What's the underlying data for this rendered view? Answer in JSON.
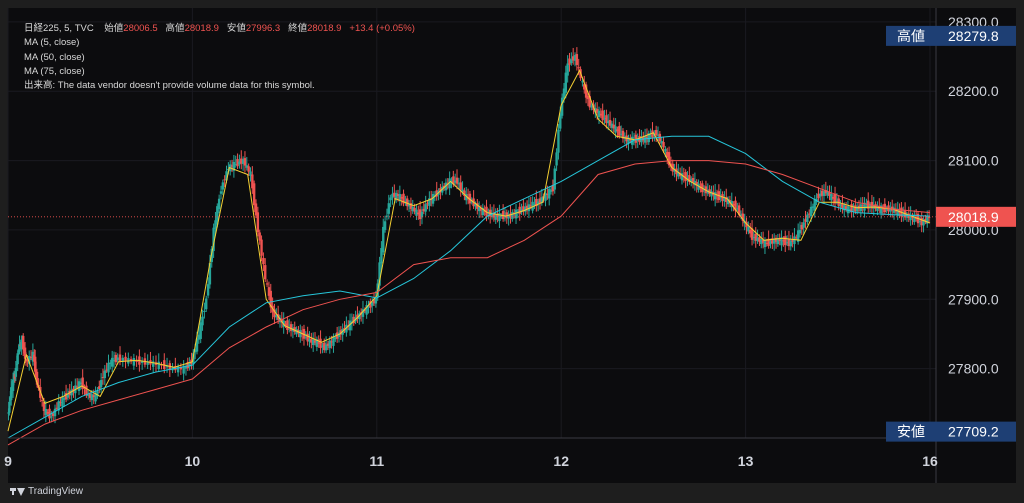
{
  "legend": {
    "symbol": "日経225, 5, TVC",
    "open_label": "始値",
    "open_value": "28006.5",
    "high_label": "高値",
    "high_value": "28018.9",
    "low_label": "安値",
    "low_value": "27996.3",
    "close_label": "終値",
    "close_value": "28018.9",
    "change": "+13.4 (+0.05%)",
    "ma_lines": [
      "MA (5, close)",
      "MA (50, close)",
      "MA (75, close)"
    ],
    "volume_note": "出来高: The data vendor doesn't provide volume data for this symbol."
  },
  "badges": {
    "high_label": "高値",
    "high_value": "28279.8",
    "low_label": "安値",
    "low_value": "27709.2",
    "last_value": "28018.9"
  },
  "brand": {
    "name": "TradingView"
  },
  "colors": {
    "up": "#26a69a",
    "down": "#ef5350",
    "ma5": "#f5d033",
    "ma50": "#26c6da",
    "ma75": "#ef5350",
    "badge_bg": "#1e3f74",
    "last_badge_bg": "#ef5350",
    "grid": "#1a1a20",
    "axis_text": "#d1d4dc"
  },
  "chart_data": {
    "type": "candlestick",
    "title": "日経225, 5, TVC",
    "ylim": [
      27700,
      28320
    ],
    "y_ticks": [
      27800,
      27900,
      28000,
      28100,
      28200,
      28300
    ],
    "y_tick_labels": [
      "27800.0",
      "27900.0",
      "28000.0",
      "28100.0",
      "28200.0",
      "28300.0"
    ],
    "x_ticks": [
      "9",
      "10",
      "11",
      "12",
      "13",
      "16"
    ],
    "x_range": [
      0,
      5
    ],
    "grid": true,
    "ohlc_points": [
      [
        0.0,
        27730
      ],
      [
        0.02,
        27770
      ],
      [
        0.04,
        27790
      ],
      [
        0.06,
        27830
      ],
      [
        0.08,
        27840
      ],
      [
        0.1,
        27810
      ],
      [
        0.14,
        27820
      ],
      [
        0.16,
        27780
      ],
      [
        0.2,
        27740
      ],
      [
        0.24,
        27730
      ],
      [
        0.28,
        27750
      ],
      [
        0.32,
        27760
      ],
      [
        0.36,
        27770
      ],
      [
        0.4,
        27780
      ],
      [
        0.44,
        27760
      ],
      [
        0.48,
        27760
      ],
      [
        0.52,
        27790
      ],
      [
        0.56,
        27810
      ],
      [
        0.6,
        27815
      ],
      [
        0.66,
        27812
      ],
      [
        0.72,
        27810
      ],
      [
        0.78,
        27808
      ],
      [
        0.84,
        27805
      ],
      [
        0.9,
        27800
      ],
      [
        0.96,
        27800
      ],
      [
        1.0,
        27810
      ],
      [
        1.04,
        27850
      ],
      [
        1.08,
        27900
      ],
      [
        1.12,
        28000
      ],
      [
        1.16,
        28060
      ],
      [
        1.2,
        28090
      ],
      [
        1.24,
        28095
      ],
      [
        1.28,
        28100
      ],
      [
        1.32,
        28080
      ],
      [
        1.36,
        28000
      ],
      [
        1.4,
        27930
      ],
      [
        1.44,
        27880
      ],
      [
        1.48,
        27870
      ],
      [
        1.52,
        27860
      ],
      [
        1.56,
        27855
      ],
      [
        1.6,
        27850
      ],
      [
        1.64,
        27840
      ],
      [
        1.68,
        27838
      ],
      [
        1.72,
        27830
      ],
      [
        1.76,
        27840
      ],
      [
        1.8,
        27850
      ],
      [
        1.84,
        27860
      ],
      [
        1.88,
        27870
      ],
      [
        1.92,
        27880
      ],
      [
        1.96,
        27890
      ],
      [
        2.0,
        27900
      ],
      [
        2.04,
        28000
      ],
      [
        2.08,
        28050
      ],
      [
        2.12,
        28050
      ],
      [
        2.16,
        28040
      ],
      [
        2.2,
        28030
      ],
      [
        2.24,
        28020
      ],
      [
        2.28,
        28040
      ],
      [
        2.32,
        28050
      ],
      [
        2.36,
        28060
      ],
      [
        2.4,
        28070
      ],
      [
        2.44,
        28070
      ],
      [
        2.48,
        28050
      ],
      [
        2.52,
        28040
      ],
      [
        2.56,
        28030
      ],
      [
        2.6,
        28025
      ],
      [
        2.64,
        28020
      ],
      [
        2.68,
        28020
      ],
      [
        2.72,
        28020
      ],
      [
        2.76,
        28025
      ],
      [
        2.8,
        28030
      ],
      [
        2.84,
        28035
      ],
      [
        2.88,
        28040
      ],
      [
        2.92,
        28050
      ],
      [
        2.96,
        28060
      ],
      [
        3.0,
        28170
      ],
      [
        3.04,
        28240
      ],
      [
        3.08,
        28250
      ],
      [
        3.12,
        28210
      ],
      [
        3.16,
        28180
      ],
      [
        3.2,
        28170
      ],
      [
        3.24,
        28160
      ],
      [
        3.28,
        28150
      ],
      [
        3.32,
        28140
      ],
      [
        3.36,
        28130
      ],
      [
        3.4,
        28130
      ],
      [
        3.44,
        28130
      ],
      [
        3.48,
        28135
      ],
      [
        3.52,
        28140
      ],
      [
        3.56,
        28120
      ],
      [
        3.6,
        28090
      ],
      [
        3.64,
        28080
      ],
      [
        3.68,
        28075
      ],
      [
        3.72,
        28070
      ],
      [
        3.76,
        28060
      ],
      [
        3.8,
        28055
      ],
      [
        3.84,
        28050
      ],
      [
        3.88,
        28045
      ],
      [
        3.92,
        28040
      ],
      [
        3.96,
        28030
      ],
      [
        4.0,
        28010
      ],
      [
        4.04,
        27990
      ],
      [
        4.08,
        27985
      ],
      [
        4.12,
        27980
      ],
      [
        4.16,
        27985
      ],
      [
        4.2,
        27985
      ],
      [
        4.24,
        27980
      ],
      [
        4.28,
        27990
      ],
      [
        4.32,
        28010
      ],
      [
        4.36,
        28030
      ],
      [
        4.4,
        28050
      ],
      [
        4.44,
        28055
      ],
      [
        4.48,
        28045
      ],
      [
        4.52,
        28035
      ],
      [
        4.56,
        28030
      ],
      [
        4.6,
        28030
      ],
      [
        4.64,
        28035
      ],
      [
        4.68,
        28035
      ],
      [
        4.72,
        28032
      ],
      [
        4.76,
        28030
      ],
      [
        4.8,
        28030
      ],
      [
        4.84,
        28025
      ],
      [
        4.88,
        28020
      ],
      [
        4.92,
        28018
      ],
      [
        4.96,
        28010
      ],
      [
        5.0,
        28019
      ]
    ],
    "series": [
      {
        "name": "MA (5, close)",
        "x": [
          0.0,
          0.1,
          0.2,
          0.3,
          0.4,
          0.5,
          0.6,
          0.7,
          0.8,
          0.9,
          1.0,
          1.1,
          1.2,
          1.3,
          1.4,
          1.5,
          1.6,
          1.7,
          1.8,
          1.9,
          2.0,
          2.1,
          2.2,
          2.3,
          2.4,
          2.5,
          2.6,
          2.7,
          2.8,
          2.9,
          3.0,
          3.1,
          3.2,
          3.3,
          3.4,
          3.5,
          3.6,
          3.7,
          3.8,
          3.9,
          4.0,
          4.1,
          4.2,
          4.3,
          4.4,
          4.5,
          4.6,
          4.7,
          4.8,
          4.9,
          5.0
        ],
        "values": [
          27710,
          27820,
          27750,
          27760,
          27775,
          27760,
          27810,
          27812,
          27808,
          27802,
          27810,
          27960,
          28090,
          28080,
          27900,
          27862,
          27850,
          27838,
          27850,
          27875,
          27905,
          28045,
          28035,
          28045,
          28070,
          28045,
          28025,
          28020,
          28028,
          28040,
          28180,
          28230,
          28160,
          28135,
          28130,
          28140,
          28090,
          28070,
          28055,
          28045,
          28010,
          27985,
          27988,
          27985,
          28040,
          28040,
          28032,
          28033,
          28030,
          28020,
          28010
        ]
      },
      {
        "name": "MA (50, close)",
        "x": [
          0.0,
          0.2,
          0.4,
          0.6,
          0.8,
          1.0,
          1.2,
          1.4,
          1.6,
          1.8,
          2.0,
          2.2,
          2.4,
          2.6,
          2.8,
          3.0,
          3.2,
          3.4,
          3.6,
          3.8,
          4.0,
          4.2,
          4.4,
          4.6,
          4.8,
          5.0
        ],
        "values": [
          27700,
          27730,
          27760,
          27780,
          27795,
          27805,
          27860,
          27895,
          27905,
          27912,
          27902,
          27930,
          27970,
          28020,
          28045,
          28070,
          28100,
          28130,
          28135,
          28135,
          28110,
          28070,
          28040,
          28025,
          28022,
          28020
        ]
      },
      {
        "name": "MA (75, close)",
        "x": [
          0.0,
          0.2,
          0.4,
          0.6,
          0.8,
          1.0,
          1.2,
          1.4,
          1.6,
          1.8,
          2.0,
          2.2,
          2.4,
          2.6,
          2.8,
          3.0,
          3.2,
          3.4,
          3.6,
          3.8,
          4.0,
          4.2,
          4.4,
          4.6,
          4.8,
          5.0
        ],
        "values": [
          27690,
          27720,
          27740,
          27755,
          27770,
          27785,
          27830,
          27860,
          27885,
          27900,
          27910,
          27950,
          27960,
          27960,
          27985,
          28020,
          28080,
          28095,
          28100,
          28100,
          28095,
          28080,
          28060,
          28040,
          28030,
          28025
        ]
      }
    ]
  }
}
